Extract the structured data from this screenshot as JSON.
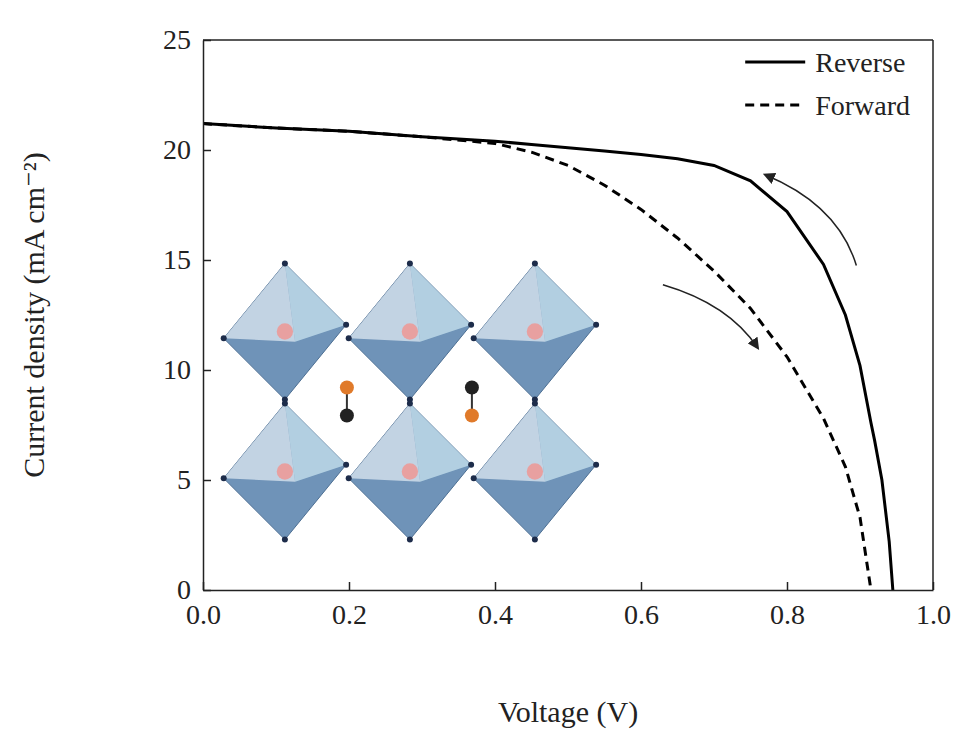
{
  "chart_data": {
    "type": "line",
    "x_label": "Voltage (V)",
    "y_label": "Current density (mA cm⁻²)",
    "x": [
      0,
      0.1,
      0.2,
      0.3,
      0.4,
      0.45,
      0.5,
      0.55,
      0.6,
      0.65,
      0.7,
      0.75,
      0.8,
      0.85,
      0.88,
      0.9,
      0.915,
      0.92,
      0.93,
      0.94,
      0.945
    ],
    "series": [
      {
        "name": "Reverse",
        "color": "#000000",
        "line_style": "solid",
        "values": [
          21.2,
          21.0,
          20.85,
          20.6,
          20.4,
          20.25,
          20.1,
          19.95,
          19.8,
          19.6,
          19.3,
          18.6,
          17.2,
          14.8,
          12.5,
          10.2,
          7.6,
          6.8,
          5.0,
          2.2,
          0
        ]
      },
      {
        "name": "Forward",
        "color": "#000000",
        "line_style": "dashed",
        "values": [
          21.2,
          21.0,
          20.85,
          20.6,
          20.3,
          19.9,
          19.3,
          18.4,
          17.3,
          16.0,
          14.5,
          12.8,
          10.6,
          7.8,
          5.6,
          3.3,
          0,
          null,
          null,
          null,
          null
        ]
      }
    ],
    "xlim": [
      0,
      1
    ],
    "xticks": [
      {
        "value": 0,
        "label": "0.0"
      },
      0.2,
      0.4,
      0.6,
      0.8,
      {
        "value": 1,
        "label": "1.0"
      }
    ],
    "ylim": [
      0,
      25
    ],
    "yticks": [
      0,
      5,
      10,
      15,
      20,
      25
    ],
    "legend": "top-right"
  }
}
